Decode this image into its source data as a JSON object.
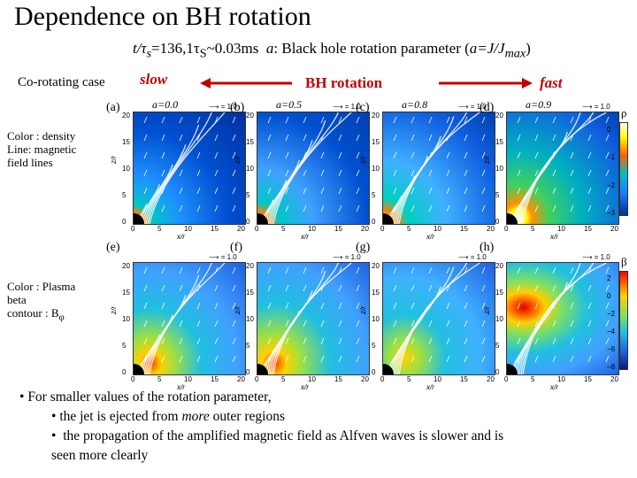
{
  "title": "Dependence on BH rotation",
  "subtitle": {
    "prefix": "t/τ",
    "subscript_s": "s",
    "rest": "=136,1τ",
    "subscript_s2": "S",
    "rest2": "~0.03ms",
    "param_label": "a",
    "param_desc": ": Black hole rotation parameter (",
    "param_formula_a": "a",
    "param_formula": "=J/J",
    "param_formula_sub": "max",
    "param_close": ")"
  },
  "header": {
    "corotating": "Co-rotating case",
    "slow": "slow",
    "bh_rotation": "BH rotation",
    "fast": "fast"
  },
  "left_labels": {
    "top": [
      "Color : density",
      "Line: magnetic",
      "field lines"
    ],
    "bottom": [
      "Color : Plasma",
      "beta",
      "contour : B",
      "φ"
    ]
  },
  "panels_top": [
    {
      "label": "(a)",
      "a_value": "a=0.0"
    },
    {
      "label": "(b)",
      "a_value": "a=0.5"
    },
    {
      "label": "(c)",
      "a_value": "a=0.8"
    },
    {
      "label": "(d)",
      "a_value": "a=0.9"
    }
  ],
  "panels_bottom": [
    {
      "label": "(e)"
    },
    {
      "label": "(f)"
    },
    {
      "label": "(g)"
    },
    {
      "label": "(h)"
    }
  ],
  "axes": {
    "x_label": "x/r",
    "y_label": "z/r",
    "x_ticks": [
      "0",
      "5",
      "10",
      "15",
      "20"
    ],
    "y_ticks": [
      "0",
      "5",
      "10",
      "15",
      "20"
    ],
    "velocity_ref": "= 1.0"
  },
  "colorbar_top": {
    "symbol": "ρ",
    "ticks": [
      "0",
      "−1",
      "−2",
      "−3"
    ]
  },
  "colorbar_bottom": {
    "symbol": "β",
    "ticks": [
      "2",
      "0",
      "−2",
      "−4",
      "−6",
      "−8"
    ]
  },
  "bullets": {
    "line1": "For smaller values of the rotation parameter,",
    "line2_prefix": "the jet is ejected from ",
    "line2_italic": "more",
    "line2_suffix": " outer regions",
    "line3": "the propagation of the amplified magnetic field as Alfven waves is slower and is",
    "line4": "seen more clearly"
  },
  "colors": {
    "accent": "#c00000"
  }
}
